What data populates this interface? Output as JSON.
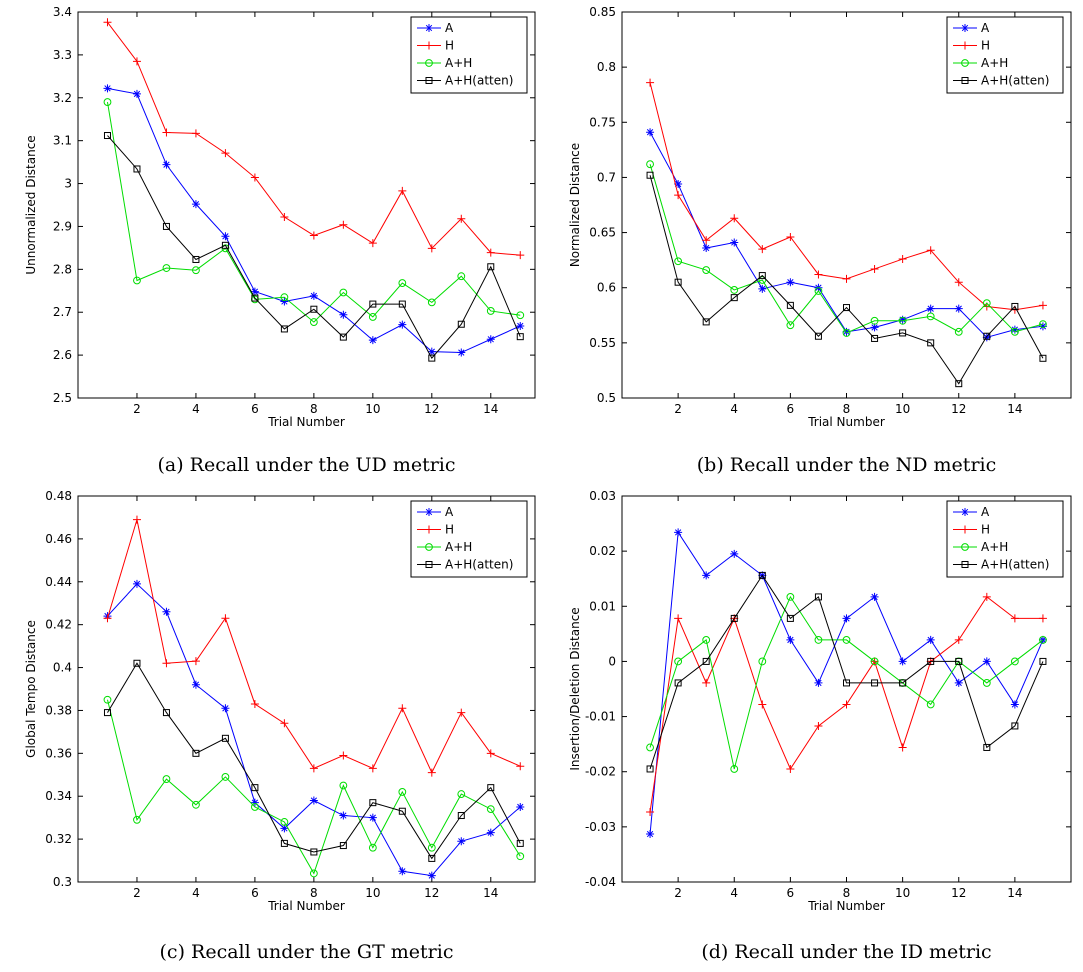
{
  "figure": {
    "legend_placement": "top-right",
    "colors": {
      "A": "#0000ff",
      "H": "#ff0000",
      "A+H": "#00dd00",
      "A+H(atten)": "#000000"
    },
    "markers": {
      "A": "asterisk",
      "H": "plus",
      "A+H": "circle",
      "A+H(atten)": "square"
    }
  },
  "chart_data": [
    {
      "type": "line",
      "caption": "(a) Recall under the UD metric",
      "xlabel": "Trial Number",
      "ylabel": "Unnormalized Distance",
      "xlim": [
        0,
        15.5
      ],
      "ylim": [
        2.5,
        3.4
      ],
      "xticks": [
        2,
        4,
        6,
        8,
        10,
        12,
        14
      ],
      "yticks": [
        2.5,
        2.6,
        2.7,
        2.8,
        2.9,
        3,
        3.1,
        3.2,
        3.3,
        3.4
      ],
      "ytick_labels": [
        "2.5",
        "2.6",
        "2.7",
        "2.8",
        "2.9",
        "3",
        "3.1",
        "3.2",
        "3.3",
        "3.4"
      ],
      "x": [
        1,
        2,
        3,
        4,
        5,
        6,
        7,
        8,
        9,
        10,
        11,
        12,
        13,
        14,
        15
      ],
      "series": [
        {
          "name": "A",
          "values": [
            3.222,
            3.209,
            3.044,
            2.952,
            2.877,
            2.748,
            2.725,
            2.738,
            2.694,
            2.635,
            2.671,
            2.608,
            2.606,
            2.637,
            2.668
          ]
        },
        {
          "name": "H",
          "values": [
            3.376,
            3.285,
            3.119,
            3.117,
            3.071,
            3.014,
            2.922,
            2.879,
            2.904,
            2.861,
            2.983,
            2.849,
            2.918,
            2.839,
            2.833
          ]
        },
        {
          "name": "A+H",
          "values": [
            3.19,
            2.774,
            2.803,
            2.798,
            2.849,
            2.73,
            2.735,
            2.677,
            2.746,
            2.689,
            2.768,
            2.723,
            2.784,
            2.703,
            2.693
          ]
        },
        {
          "name": "A+H(atten)",
          "values": [
            3.112,
            3.034,
            2.9,
            2.823,
            2.856,
            2.733,
            2.661,
            2.707,
            2.642,
            2.719,
            2.719,
            2.593,
            2.672,
            2.806,
            2.643
          ]
        }
      ]
    },
    {
      "type": "line",
      "caption": "(b) Recall under the ND metric",
      "xlabel": "Trial Number",
      "ylabel": "Normalized Distance",
      "xlim": [
        0,
        16
      ],
      "ylim": [
        0.5,
        0.85
      ],
      "xticks": [
        2,
        4,
        6,
        8,
        10,
        12,
        14
      ],
      "yticks": [
        0.5,
        0.55,
        0.6,
        0.65,
        0.7,
        0.75,
        0.8,
        0.85
      ],
      "ytick_labels": [
        "0.5",
        "0.55",
        "0.6",
        "0.65",
        "0.7",
        "0.75",
        "0.8",
        "0.85"
      ],
      "x": [
        1,
        2,
        3,
        4,
        5,
        6,
        7,
        8,
        9,
        10,
        11,
        12,
        13,
        14,
        15
      ],
      "series": [
        {
          "name": "A",
          "values": [
            0.741,
            0.694,
            0.636,
            0.641,
            0.599,
            0.605,
            0.6,
            0.56,
            0.564,
            0.571,
            0.581,
            0.581,
            0.555,
            0.562,
            0.565
          ]
        },
        {
          "name": "H",
          "values": [
            0.786,
            0.684,
            0.643,
            0.663,
            0.635,
            0.646,
            0.612,
            0.608,
            0.617,
            0.626,
            0.634,
            0.605,
            0.583,
            0.58,
            0.584
          ]
        },
        {
          "name": "A+H",
          "values": [
            0.712,
            0.624,
            0.616,
            0.598,
            0.607,
            0.566,
            0.597,
            0.559,
            0.57,
            0.57,
            0.574,
            0.56,
            0.586,
            0.56,
            0.567
          ]
        },
        {
          "name": "A+H(atten)",
          "values": [
            0.702,
            0.605,
            0.569,
            0.591,
            0.611,
            0.584,
            0.556,
            0.582,
            0.554,
            0.559,
            0.55,
            0.513,
            0.556,
            0.583,
            0.536
          ]
        }
      ]
    },
    {
      "type": "line",
      "caption": "(c) Recall under the GT metric",
      "xlabel": "Trial Number",
      "ylabel": "Global Tempo Distance",
      "xlim": [
        0,
        15.5
      ],
      "ylim": [
        0.3,
        0.48
      ],
      "xticks": [
        2,
        4,
        6,
        8,
        10,
        12,
        14
      ],
      "yticks": [
        0.3,
        0.32,
        0.34,
        0.36,
        0.38,
        0.4,
        0.42,
        0.44,
        0.46,
        0.48
      ],
      "ytick_labels": [
        "0.3",
        "0.32",
        "0.34",
        "0.36",
        "0.38",
        "0.4",
        "0.42",
        "0.44",
        "0.46",
        "0.48"
      ],
      "x": [
        1,
        2,
        3,
        4,
        5,
        6,
        7,
        8,
        9,
        10,
        11,
        12,
        13,
        14,
        15
      ],
      "series": [
        {
          "name": "A",
          "values": [
            0.424,
            0.439,
            0.426,
            0.392,
            0.381,
            0.337,
            0.325,
            0.338,
            0.331,
            0.33,
            0.305,
            0.303,
            0.319,
            0.323,
            0.335
          ]
        },
        {
          "name": "H",
          "values": [
            0.423,
            0.469,
            0.402,
            0.403,
            0.423,
            0.383,
            0.374,
            0.353,
            0.359,
            0.353,
            0.381,
            0.351,
            0.379,
            0.36,
            0.354
          ]
        },
        {
          "name": "A+H",
          "values": [
            0.385,
            0.329,
            0.348,
            0.336,
            0.349,
            0.335,
            0.328,
            0.304,
            0.345,
            0.316,
            0.342,
            0.316,
            0.341,
            0.334,
            0.312
          ]
        },
        {
          "name": "A+H(atten)",
          "values": [
            0.379,
            0.402,
            0.379,
            0.36,
            0.367,
            0.344,
            0.318,
            0.314,
            0.317,
            0.337,
            0.333,
            0.311,
            0.331,
            0.344,
            0.318
          ]
        }
      ]
    },
    {
      "type": "line",
      "caption": "(d) Recall under the ID metric",
      "xlabel": "Trial Number",
      "ylabel": "Insertion/Deletion Distance",
      "xlim": [
        0,
        16
      ],
      "ylim": [
        -0.04,
        0.03
      ],
      "xticks": [
        2,
        4,
        6,
        8,
        10,
        12,
        14
      ],
      "yticks": [
        -0.04,
        -0.03,
        -0.02,
        -0.01,
        0,
        0.01,
        0.02,
        0.03
      ],
      "ytick_labels": [
        "-0.04",
        "-0.03",
        "-0.02",
        "-0.01",
        "0",
        "0.01",
        "0.02",
        "0.03"
      ],
      "x": [
        1,
        2,
        3,
        4,
        5,
        6,
        7,
        8,
        9,
        10,
        11,
        12,
        13,
        14,
        15
      ],
      "series": [
        {
          "name": "A",
          "values": [
            -0.0313,
            0.0234,
            0.0156,
            0.0195,
            0.0156,
            0.0039,
            -0.0039,
            0.0078,
            0.0117,
            0.0,
            0.0039,
            -0.0039,
            0.0,
            -0.0078,
            0.0039
          ]
        },
        {
          "name": "H",
          "values": [
            -0.0273,
            0.0078,
            -0.0039,
            0.0078,
            -0.0078,
            -0.0195,
            -0.0117,
            -0.0078,
            0.0,
            -0.0156,
            0.0,
            0.0039,
            0.0117,
            0.0078,
            0.0078
          ]
        },
        {
          "name": "A+H",
          "values": [
            -0.0156,
            0.0,
            0.0039,
            -0.0195,
            0.0,
            0.0117,
            0.0039,
            0.0039,
            0.0,
            -0.0039,
            -0.0078,
            0.0,
            -0.0039,
            0.0,
            0.0039
          ]
        },
        {
          "name": "A+H(atten)",
          "values": [
            -0.0195,
            -0.0039,
            0.0,
            0.0078,
            0.0156,
            0.0078,
            0.0117,
            -0.0039,
            -0.0039,
            -0.0039,
            0.0,
            0.0,
            -0.0156,
            -0.0117,
            0.0
          ]
        }
      ]
    }
  ]
}
